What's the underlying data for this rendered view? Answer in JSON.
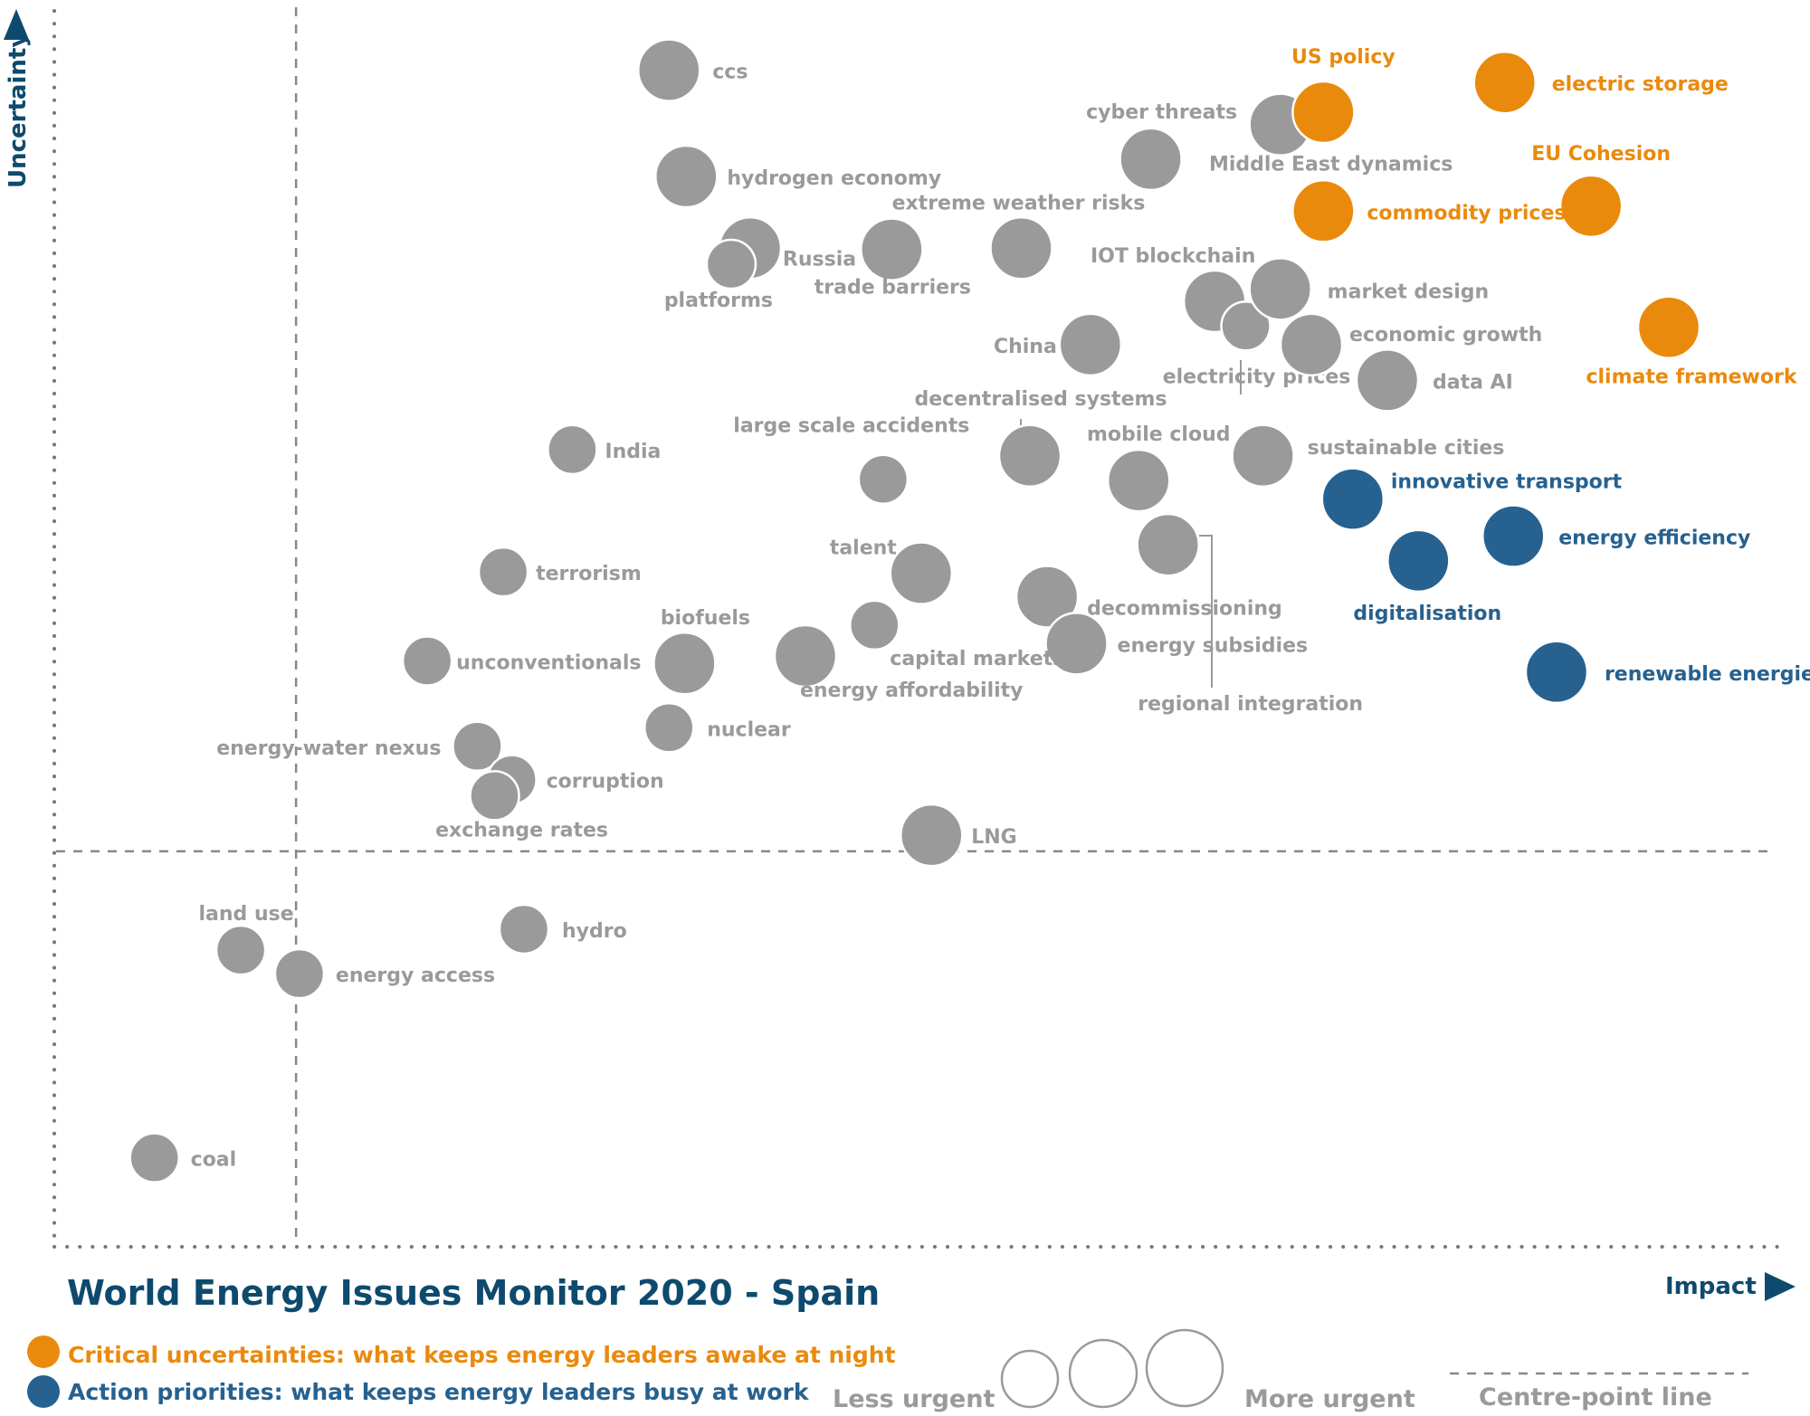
{
  "chart_data": {
    "type": "scatter",
    "title": "World Energy Issues Monitor 2020 - Spain",
    "xlabel": "Impact",
    "ylabel": "Uncertainty",
    "xlim": [
      0,
      100
    ],
    "ylim": [
      0,
      100
    ],
    "centre_point": {
      "x": 14,
      "y": 32
    },
    "colors": {
      "critical": "#ea8a0d",
      "action": "#26618f",
      "issue": "#9a9a9a",
      "title": "#0e4a6e",
      "axis_dots": "#777777"
    },
    "legend": {
      "critical": "Critical uncertainties: what keeps energy leaders awake at night",
      "action": "Action priorities: what keeps energy leaders busy at work",
      "less_urgent": "Less urgent",
      "more_urgent": "More urgent",
      "centre_line": "Centre-point  line"
    },
    "points": [
      {
        "label": "ccs",
        "x": 35.6,
        "y": 95.2,
        "urgency": 3,
        "category": "issue"
      },
      {
        "label": "hydrogen economy",
        "x": 36.6,
        "y": 86.6,
        "urgency": 3,
        "category": "issue"
      },
      {
        "label": "Russia",
        "x": 40.3,
        "y": 80.8,
        "urgency": 3,
        "category": "issue"
      },
      {
        "label": "platforms",
        "x": 39.2,
        "y": 79.5,
        "urgency": 2,
        "category": "issue"
      },
      {
        "label": "trade barriers",
        "x": 48.5,
        "y": 80.7,
        "urgency": 3,
        "category": "issue"
      },
      {
        "label": "extreme weather risks",
        "x": 56.0,
        "y": 80.8,
        "urgency": 3,
        "category": "issue"
      },
      {
        "label": "cyber threats",
        "x": 63.5,
        "y": 88.0,
        "urgency": 3,
        "category": "issue"
      },
      {
        "label": "Middle East dynamics",
        "x": 71.0,
        "y": 90.8,
        "urgency": 3,
        "category": "issue"
      },
      {
        "label": "US policy",
        "x": 73.5,
        "y": 91.8,
        "urgency": 3,
        "category": "critical"
      },
      {
        "label": "electric storage",
        "x": 84.0,
        "y": 94.2,
        "urgency": 3,
        "category": "critical"
      },
      {
        "label": "EU Cohesion",
        "x": 89.0,
        "y": 84.2,
        "urgency": 3,
        "category": "critical"
      },
      {
        "label": "commodity prices",
        "x": 73.5,
        "y": 83.8,
        "urgency": 3,
        "category": "critical"
      },
      {
        "label": "climate framework",
        "x": 93.5,
        "y": 74.4,
        "urgency": 3,
        "category": "critical"
      },
      {
        "label": "IOT blockchain",
        "x": 67.2,
        "y": 76.5,
        "urgency": 3,
        "category": "issue"
      },
      {
        "label": "electricity prices",
        "x": 69.0,
        "y": 74.5,
        "urgency": 2,
        "category": "issue"
      },
      {
        "label": "market design",
        "x": 71.0,
        "y": 77.5,
        "urgency": 3,
        "category": "issue"
      },
      {
        "label": "economic growth",
        "x": 72.8,
        "y": 73.0,
        "urgency": 3,
        "category": "issue"
      },
      {
        "label": "data AI",
        "x": 77.2,
        "y": 70.1,
        "urgency": 3,
        "category": "issue"
      },
      {
        "label": "China",
        "x": 60.0,
        "y": 73.0,
        "urgency": 3,
        "category": "issue"
      },
      {
        "label": "decentralised systems",
        "x": 56.5,
        "y": 64.0,
        "urgency": 3,
        "category": "issue"
      },
      {
        "label": "large scale accidents",
        "x": 48.0,
        "y": 62.1,
        "urgency": 2,
        "category": "issue"
      },
      {
        "label": "mobile cloud",
        "x": 62.8,
        "y": 62.0,
        "urgency": 3,
        "category": "issue"
      },
      {
        "label": "sustainable cities",
        "x": 70.0,
        "y": 64.0,
        "urgency": 3,
        "category": "issue"
      },
      {
        "label": "innovative transport",
        "x": 75.2,
        "y": 60.5,
        "urgency": 3,
        "category": "action"
      },
      {
        "label": "energy efficiency",
        "x": 84.5,
        "y": 57.5,
        "urgency": 3,
        "category": "action"
      },
      {
        "label": "digitalisation",
        "x": 79.0,
        "y": 55.5,
        "urgency": 3,
        "category": "action"
      },
      {
        "label": "renewable energies",
        "x": 87.0,
        "y": 46.5,
        "urgency": 3,
        "category": "action"
      },
      {
        "label": "regional integration",
        "x": 64.5,
        "y": 56.8,
        "urgency": 3,
        "category": "issue"
      },
      {
        "label": "decommissioning",
        "x": 57.5,
        "y": 52.6,
        "urgency": 3,
        "category": "issue"
      },
      {
        "label": "energy subsidies",
        "x": 59.2,
        "y": 48.8,
        "urgency": 3,
        "category": "issue"
      },
      {
        "label": "talent",
        "x": 50.2,
        "y": 54.5,
        "urgency": 3,
        "category": "issue"
      },
      {
        "label": "capital markets",
        "x": 47.5,
        "y": 50.3,
        "urgency": 2,
        "category": "issue"
      },
      {
        "label": "energy affordability",
        "x": 43.5,
        "y": 47.8,
        "urgency": 3,
        "category": "issue"
      },
      {
        "label": "India",
        "x": 30.0,
        "y": 64.5,
        "urgency": 2,
        "category": "issue"
      },
      {
        "label": "terrorism",
        "x": 26.0,
        "y": 54.6,
        "urgency": 2,
        "category": "issue"
      },
      {
        "label": "unconventionals",
        "x": 21.6,
        "y": 47.4,
        "urgency": 2,
        "category": "issue"
      },
      {
        "label": "biofuels",
        "x": 36.5,
        "y": 47.2,
        "urgency": 3,
        "category": "issue"
      },
      {
        "label": "nuclear",
        "x": 35.6,
        "y": 42.0,
        "urgency": 2,
        "category": "issue"
      },
      {
        "label": "energy-water nexus",
        "x": 24.5,
        "y": 40.5,
        "urgency": 2,
        "category": "issue"
      },
      {
        "label": "corruption",
        "x": 26.5,
        "y": 37.8,
        "urgency": 2,
        "category": "issue"
      },
      {
        "label": "exchange rates",
        "x": 25.5,
        "y": 36.5,
        "urgency": 2,
        "category": "issue"
      },
      {
        "label": "LNG",
        "x": 50.8,
        "y": 33.3,
        "urgency": 3,
        "category": "issue"
      },
      {
        "label": "land use",
        "x": 10.8,
        "y": 24.0,
        "urgency": 2,
        "category": "issue"
      },
      {
        "label": "energy access",
        "x": 14.2,
        "y": 22.1,
        "urgency": 2,
        "category": "issue"
      },
      {
        "label": "hydro",
        "x": 27.2,
        "y": 25.7,
        "urgency": 2,
        "category": "issue"
      },
      {
        "label": "coal",
        "x": 5.8,
        "y": 7.2,
        "urgency": 2,
        "category": "issue"
      }
    ]
  }
}
